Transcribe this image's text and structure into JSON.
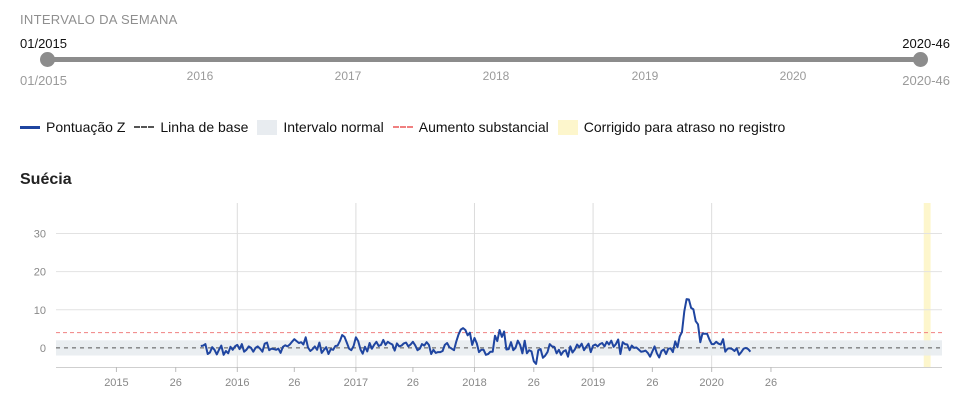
{
  "range": {
    "title": "INTERVALO DA SEMANA",
    "start_value": "01/2015",
    "end_value": "2020-46",
    "start_label": "01/2015",
    "end_label": "2020-46",
    "year_labels": [
      "2016",
      "2017",
      "2018",
      "2019",
      "2020"
    ]
  },
  "legend": {
    "zscore": "Pontuação Z",
    "baseline": "Linha de base",
    "normal_range": "Intervalo normal",
    "substantial_increase": "Aumento substancial",
    "corrected": "Corrigido para atraso no registro"
  },
  "colors": {
    "series": "#1f45a0",
    "baseline": "#555555",
    "normal_band": "#e8ecf0",
    "threshold": "#f08080",
    "corrected_band": "#fdf6cc"
  },
  "chart_data": {
    "type": "line",
    "title": "Suécia",
    "ylim": [
      -5,
      38
    ],
    "yticks": [
      0,
      10,
      20,
      30
    ],
    "xlim": [
      -26.5,
      362
    ],
    "xticks": [
      {
        "x": 0,
        "label": "2015"
      },
      {
        "x": 26,
        "label": "26"
      },
      {
        "x": 53,
        "label": "2016"
      },
      {
        "x": 78,
        "label": "26"
      },
      {
        "x": 105,
        "label": "2017"
      },
      {
        "x": 130,
        "label": "26"
      },
      {
        "x": 157,
        "label": "2018"
      },
      {
        "x": 183,
        "label": "26"
      },
      {
        "x": 209,
        "label": "2019"
      },
      {
        "x": 235,
        "label": "26"
      },
      {
        "x": 261,
        "label": "2020"
      },
      {
        "x": 287,
        "label": "26"
      }
    ],
    "year_gridlines": [
      53,
      105,
      157,
      209,
      261
    ],
    "baseline": 0,
    "normal_range": [
      -2,
      2
    ],
    "substantial_increase_threshold": 4,
    "corrected_range": [
      354,
      357
    ],
    "series": [
      {
        "name": "Pontuação Z",
        "x_start": 37,
        "values": [
          0.5,
          0.6,
          1.0,
          -1.6,
          -1.2,
          0.2,
          -0.5,
          -1.7,
          -0.4,
          0.6,
          -1.8,
          -0.8,
          -1.4,
          0.3,
          -0.5,
          0.4,
          0.8,
          -0.3,
          1.0,
          -1.0,
          -0.5,
          0.4,
          0.0,
          -1.0,
          0.0,
          0.4,
          -0.2,
          -1.0,
          1.1,
          1.4,
          -0.6,
          -0.2,
          -0.3,
          -0.5,
          -0.2,
          -1.3,
          0.3,
          0.7,
          0.4,
          0.9,
          1.6,
          2.3,
          1.8,
          1.3,
          1.5,
          0.9,
          2.8,
          0.1,
          -0.8,
          -0.3,
          0.4,
          -0.5,
          1.4,
          -1.3,
          -0.5,
          0.2,
          -1.6,
          -0.3,
          -0.5,
          0.5,
          0.6,
          1.8,
          3.4,
          2.9,
          1.4,
          -0.2,
          -0.6,
          0.5,
          2.8,
          1.8,
          -0.4,
          -1.5,
          0.3,
          -0.9,
          1.3,
          -0.2,
          0.8,
          1.6,
          0.5,
          0.8,
          2.1,
          0.8,
          1.6,
          1.2,
          0.9,
          -0.7,
          1.2,
          0.4,
          0.6,
          1.2,
          1.4,
          0.4,
          0.9,
          1.6,
          0.7,
          -0.6,
          -0.2,
          1.0,
          0.6,
          1.5,
          0.8,
          -1.6,
          -0.5,
          -1.3,
          -1.1,
          -1.1,
          -0.8,
          0.8,
          1.3,
          0.2,
          -0.2,
          -0.6,
          1.6,
          3.5,
          4.8,
          5.2,
          4.7,
          3.3,
          4.0,
          0.8,
          2.6,
          1.2,
          -1.1,
          -0.5,
          -0.5,
          -1.8,
          -1.6,
          -1.0,
          -1.0,
          3.2,
          1.8,
          4.7,
          2.9,
          4.3,
          -0.4,
          -0.3,
          1.5,
          -0.6,
          0.0,
          1.9,
          0.8,
          -1.4,
          1.9,
          -1.4,
          -0.6,
          -0.9,
          -3.5,
          -4.2,
          -0.6,
          -0.3,
          -2.6,
          -2.0,
          -1.1,
          1.0,
          0.4,
          0.3,
          -1.4,
          -0.5,
          -1.8,
          -0.9,
          -0.6,
          -2.3,
          0.4,
          -1.2,
          -0.4,
          0.9,
          0.2,
          1.1,
          -0.6,
          0.3,
          1.1,
          -1.1,
          0.6,
          0.9,
          0.4,
          1.0,
          1.3,
          0.4,
          1.6,
          0.9,
          1.9,
          0.3,
          1.0,
          2.2,
          -1.6,
          1.5,
          1.0,
          0.9,
          -0.6,
          0.6,
          0.0,
          0.1,
          -0.4,
          -1.0,
          -0.9,
          -0.7,
          -1.3,
          -2.3,
          -0.9,
          0.4,
          -1.4,
          -2.5,
          -0.8,
          -0.4,
          -1.6,
          -0.2,
          -0.1,
          -1.1,
          1.7,
          0.2,
          3.0,
          4.2,
          9.6,
          12.8,
          12.7,
          10.5,
          10.1,
          7.0,
          6.2,
          1.5,
          3.8,
          3.7,
          3.7,
          2.2,
          1.0,
          1.0,
          1.6,
          1.1,
          0.9,
          2.3,
          -1.0,
          -0.2,
          -0.1,
          -0.3,
          -0.8,
          -0.1,
          -1.8,
          -1.1,
          -0.2,
          0.0,
          -0.3,
          -1.0
        ]
      }
    ]
  }
}
